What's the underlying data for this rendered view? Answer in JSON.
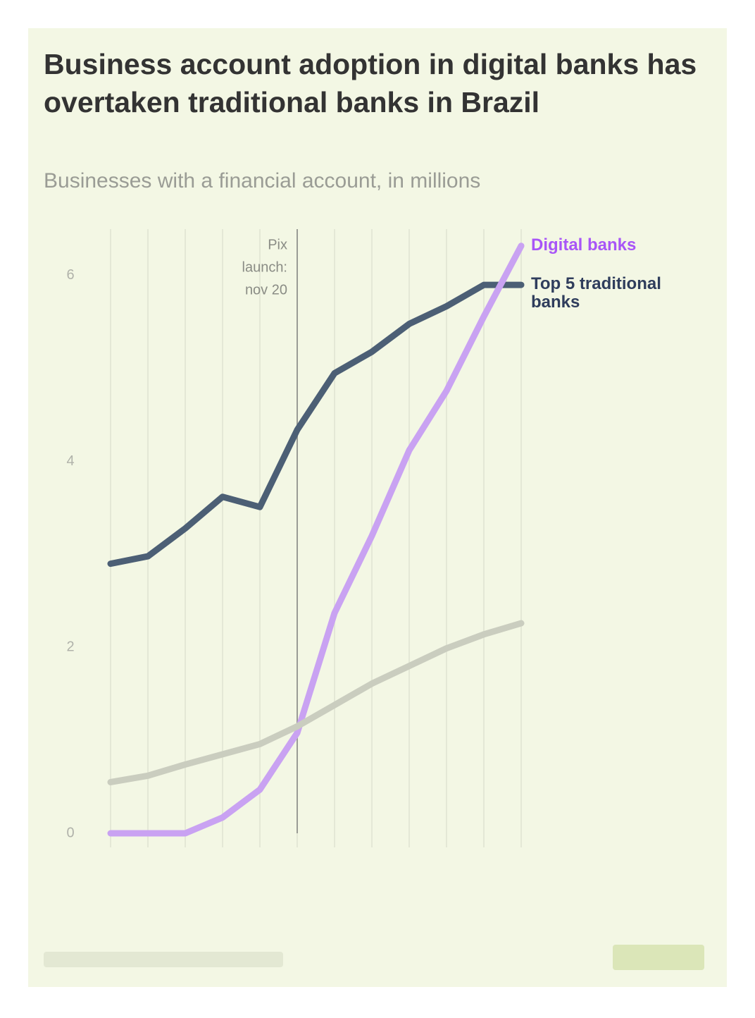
{
  "chart_data": {
    "type": "line",
    "title": "Business account adoption in digital banks has overtaken traditional banks in Brazil",
    "subtitle": "Businesses with a financial account, in millions",
    "categories": [
      null,
      null,
      null,
      null,
      null,
      null,
      null,
      null,
      null,
      null,
      null,
      null
    ],
    "series": [
      {
        "name": "Top 5 traditional banks",
        "color": "#4c5f75",
        "label_color": "#2f3d5c",
        "values": [
          2.9,
          2.98,
          3.28,
          3.62,
          3.51,
          4.34,
          4.95,
          5.18,
          5.48,
          5.67,
          5.9,
          5.9
        ]
      },
      {
        "name": "Digital banks",
        "color": "#c9a2f2",
        "label_color": "#a855f7",
        "values": [
          0.0,
          0.0,
          0.0,
          0.17,
          0.47,
          1.08,
          2.37,
          3.2,
          4.12,
          4.76,
          5.56,
          6.32
        ]
      },
      {
        "color": "#cacdbf",
        "values": [
          0.55,
          0.62,
          0.74,
          0.85,
          0.96,
          1.15,
          1.38,
          1.61,
          1.8,
          1.99,
          2.14,
          2.26
        ]
      }
    ],
    "ylim": [
      0,
      6.5
    ],
    "yticks": [
      0,
      2,
      4,
      6
    ],
    "annotation": {
      "lines": [
        "Pix",
        "launch:",
        "nov 20"
      ],
      "x": 5
    }
  }
}
